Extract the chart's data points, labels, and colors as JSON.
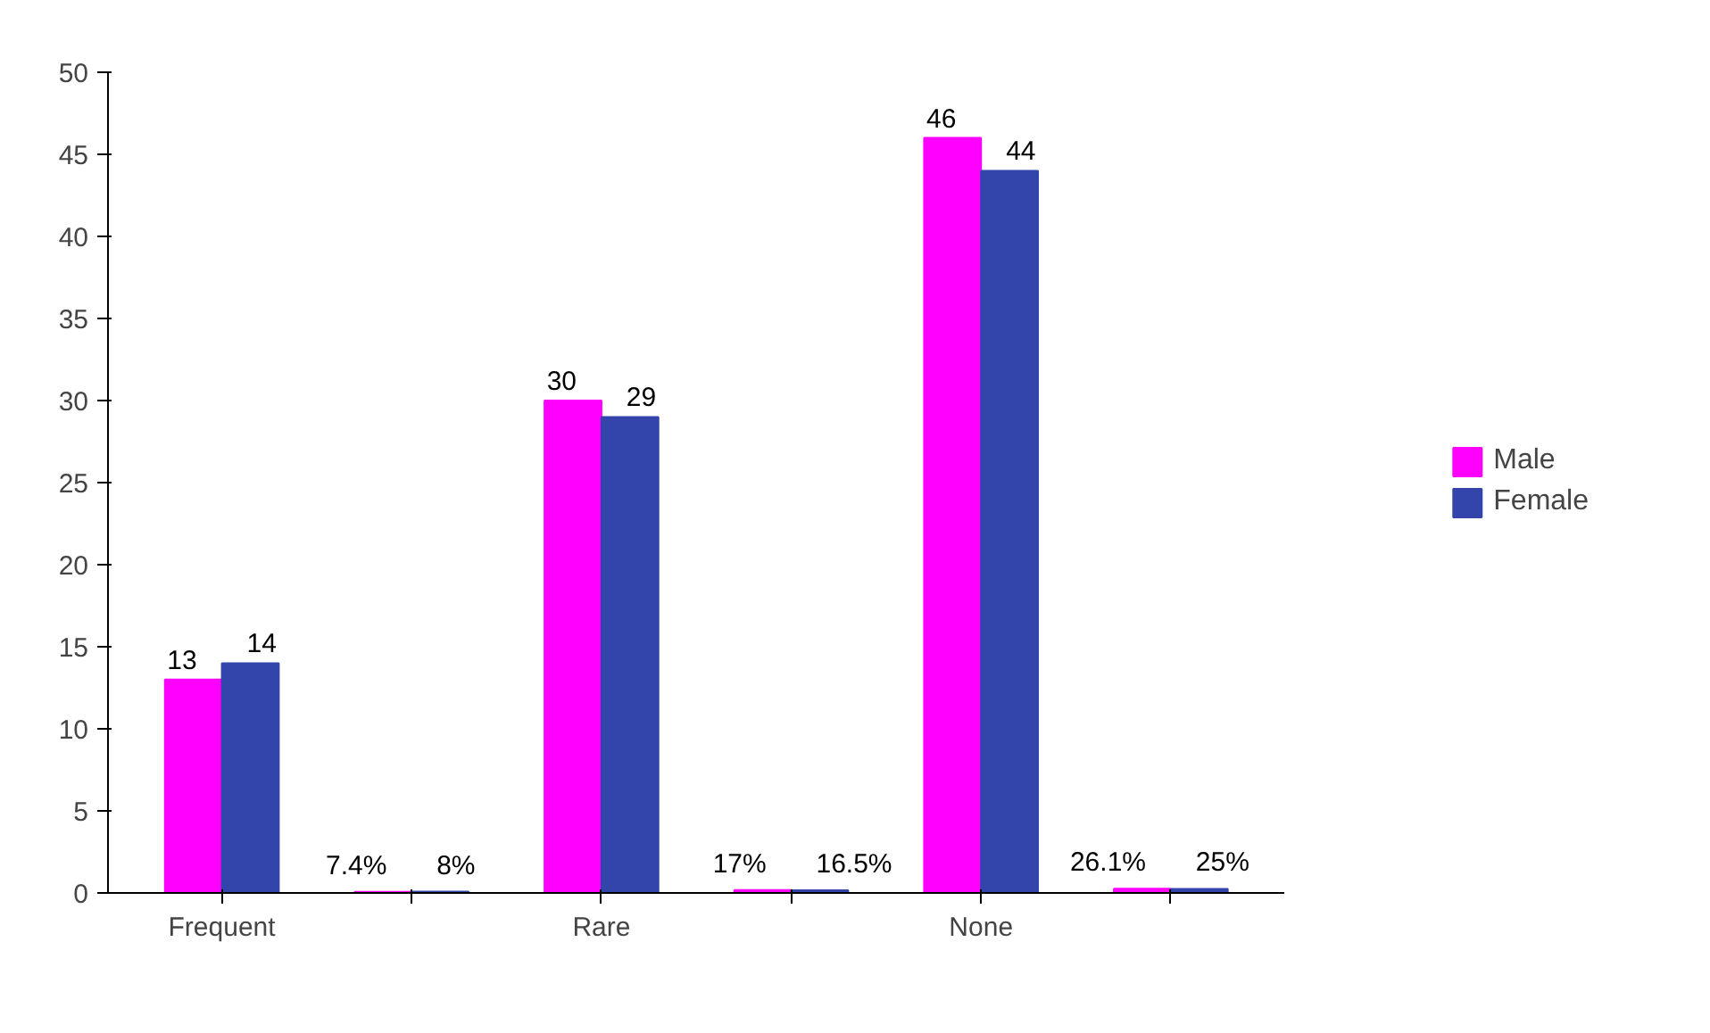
{
  "chart_data": {
    "type": "bar",
    "categories": [
      "Frequent",
      null,
      "Rare",
      null,
      "None",
      null
    ],
    "series": [
      {
        "name": "Male",
        "color": "#ff00ff",
        "values": [
          13,
          0.074,
          30,
          0.17,
          46,
          0.261
        ],
        "value_labels": [
          "13",
          "7.4%",
          "30",
          "17%",
          "46",
          "26.1%"
        ]
      },
      {
        "name": "Female",
        "color": "#3344aa",
        "values": [
          14,
          0.08,
          29,
          0.165,
          44,
          0.25
        ],
        "value_labels": [
          "14",
          "8%",
          "29",
          "16.5%",
          "44",
          "25%"
        ]
      }
    ],
    "ylim": [
      0,
      50
    ],
    "yticks": [
      0,
      5,
      10,
      15,
      20,
      25,
      30,
      35,
      40,
      45,
      50
    ],
    "grid": false,
    "legend": "right"
  }
}
